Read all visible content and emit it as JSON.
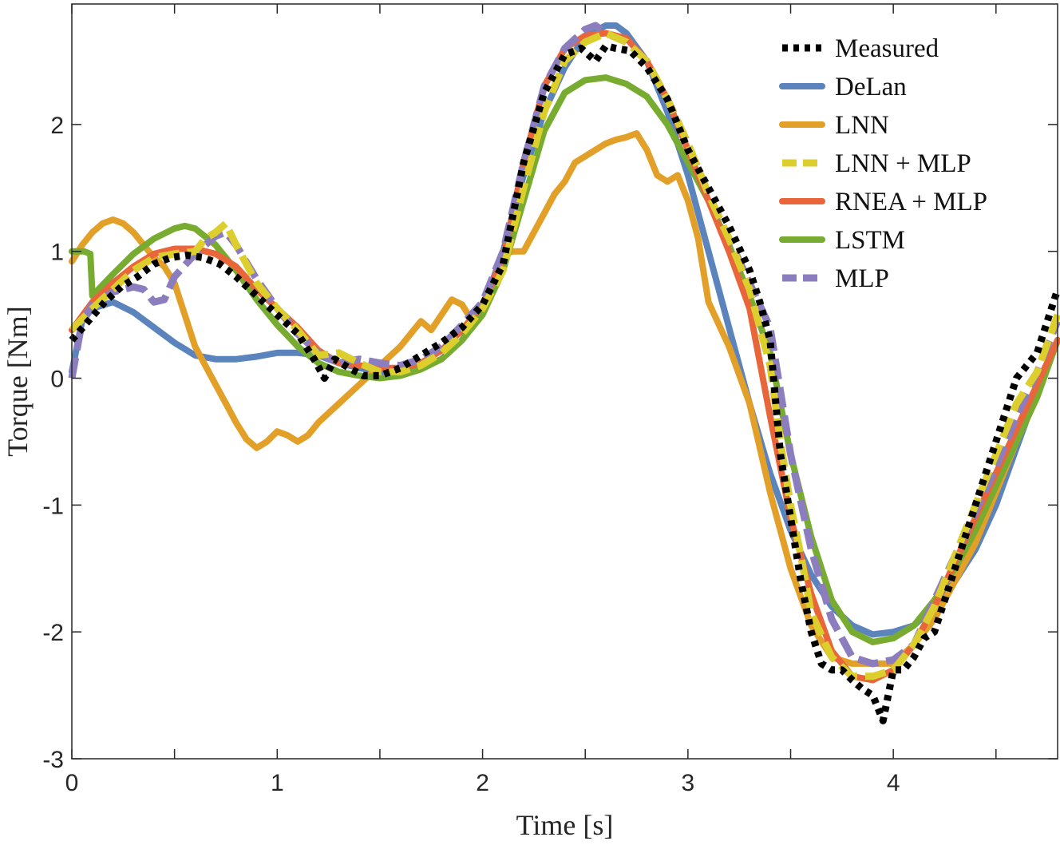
{
  "chart_data": {
    "type": "line",
    "xlabel": "Time [s]",
    "ylabel": "Torque [Nm]",
    "xlim": [
      0,
      4.8
    ],
    "ylim": [
      -3,
      2.95
    ],
    "x_ticks": [
      0,
      1,
      2,
      3,
      4
    ],
    "y_ticks": [
      -3,
      -2,
      -1,
      0,
      1,
      2
    ],
    "x_tick_labels": [
      "0",
      "1",
      "2",
      "3",
      "4"
    ],
    "y_tick_labels": [
      "-3",
      "-2",
      "-1",
      "0",
      "1",
      "2"
    ],
    "grid": false,
    "legend_position": "top-right",
    "series": [
      {
        "name": "Measured",
        "color": "#000000",
        "style": "dotted",
        "x": [
          0,
          0.08,
          0.16,
          0.24,
          0.32,
          0.4,
          0.48,
          0.56,
          0.64,
          0.72,
          0.8,
          0.9,
          1.0,
          1.1,
          1.18,
          1.23,
          1.28,
          1.35,
          1.42,
          1.5,
          1.6,
          1.7,
          1.8,
          1.9,
          2.0,
          2.1,
          2.2,
          2.3,
          2.4,
          2.48,
          2.55,
          2.6,
          2.65,
          2.72,
          2.8,
          2.9,
          3.0,
          3.1,
          3.2,
          3.3,
          3.35,
          3.4,
          3.45,
          3.5,
          3.55,
          3.6,
          3.65,
          3.7,
          3.75,
          3.8,
          3.85,
          3.9,
          3.95,
          4.0,
          4.05,
          4.1,
          4.15,
          4.2,
          4.3,
          4.4,
          4.5,
          4.6,
          4.7,
          4.8
        ],
        "y": [
          0.3,
          0.45,
          0.6,
          0.72,
          0.8,
          0.9,
          0.95,
          0.97,
          0.95,
          0.9,
          0.8,
          0.65,
          0.5,
          0.35,
          0.15,
          0.0,
          0.15,
          0.08,
          0.02,
          0.02,
          0.08,
          0.18,
          0.28,
          0.4,
          0.58,
          0.9,
          1.7,
          2.25,
          2.55,
          2.6,
          2.5,
          2.62,
          2.6,
          2.58,
          2.45,
          2.2,
          1.8,
          1.5,
          1.2,
          0.85,
          0.6,
          0.3,
          -0.6,
          -1.1,
          -1.6,
          -2.0,
          -2.25,
          -2.3,
          -2.3,
          -2.38,
          -2.45,
          -2.5,
          -2.7,
          -2.3,
          -2.3,
          -2.2,
          -2.05,
          -2.0,
          -1.5,
          -1.0,
          -0.5,
          0.0,
          0.2,
          0.7
        ]
      },
      {
        "name": "DeLan",
        "color": "#5B84BD",
        "style": "solid",
        "x": [
          0,
          0.05,
          0.1,
          0.2,
          0.3,
          0.4,
          0.5,
          0.6,
          0.7,
          0.8,
          0.9,
          1.0,
          1.1,
          1.2,
          1.3,
          1.4,
          1.5,
          1.6,
          1.7,
          1.8,
          1.9,
          2.0,
          2.1,
          2.2,
          2.3,
          2.4,
          2.5,
          2.6,
          2.65,
          2.7,
          2.8,
          2.9,
          3.0,
          3.1,
          3.2,
          3.3,
          3.4,
          3.5,
          3.6,
          3.7,
          3.8,
          3.9,
          4.0,
          4.1,
          4.2,
          4.3,
          4.4,
          4.5,
          4.6,
          4.7,
          4.8
        ],
        "y": [
          0.05,
          0.45,
          0.55,
          0.6,
          0.52,
          0.4,
          0.28,
          0.18,
          0.15,
          0.15,
          0.17,
          0.2,
          0.2,
          0.18,
          0.12,
          0.08,
          0.05,
          0.05,
          0.08,
          0.15,
          0.3,
          0.55,
          1.0,
          1.6,
          2.1,
          2.45,
          2.7,
          2.78,
          2.78,
          2.72,
          2.5,
          2.1,
          1.6,
          1.0,
          0.4,
          -0.2,
          -0.75,
          -1.2,
          -1.55,
          -1.8,
          -1.95,
          -2.02,
          -2.0,
          -1.95,
          -1.8,
          -1.6,
          -1.35,
          -1.0,
          -0.55,
          -0.1,
          0.3
        ]
      },
      {
        "name": "LNN",
        "color": "#E2A029",
        "style": "solid",
        "x": [
          0,
          0.05,
          0.1,
          0.15,
          0.2,
          0.25,
          0.3,
          0.35,
          0.4,
          0.45,
          0.5,
          0.55,
          0.6,
          0.65,
          0.7,
          0.75,
          0.8,
          0.85,
          0.9,
          0.95,
          1.0,
          1.05,
          1.1,
          1.15,
          1.2,
          1.3,
          1.4,
          1.5,
          1.6,
          1.65,
          1.7,
          1.75,
          1.8,
          1.85,
          1.9,
          1.95,
          2.0,
          2.05,
          2.1,
          2.15,
          2.2,
          2.25,
          2.3,
          2.35,
          2.4,
          2.45,
          2.5,
          2.55,
          2.6,
          2.65,
          2.7,
          2.75,
          2.8,
          2.85,
          2.9,
          2.95,
          3.0,
          3.05,
          3.1,
          3.2,
          3.3,
          3.4,
          3.5,
          3.6,
          3.7,
          3.8,
          3.9,
          4.0,
          4.1,
          4.2,
          4.3,
          4.4,
          4.5,
          4.6,
          4.7,
          4.8
        ],
        "y": [
          0.92,
          1.05,
          1.15,
          1.22,
          1.25,
          1.22,
          1.15,
          1.05,
          0.95,
          0.88,
          0.75,
          0.5,
          0.25,
          0.1,
          -0.05,
          -0.2,
          -0.35,
          -0.48,
          -0.55,
          -0.5,
          -0.42,
          -0.45,
          -0.5,
          -0.45,
          -0.35,
          -0.2,
          -0.05,
          0.1,
          0.25,
          0.35,
          0.45,
          0.38,
          0.5,
          0.62,
          0.58,
          0.45,
          0.55,
          0.75,
          0.98,
          1.0,
          1.0,
          1.15,
          1.3,
          1.45,
          1.55,
          1.7,
          1.75,
          1.8,
          1.85,
          1.88,
          1.9,
          1.93,
          1.8,
          1.6,
          1.55,
          1.6,
          1.4,
          1.1,
          0.6,
          0.25,
          -0.2,
          -0.9,
          -1.5,
          -1.95,
          -2.2,
          -2.25,
          -2.25,
          -2.25,
          -2.1,
          -1.9,
          -1.6,
          -1.3,
          -0.9,
          -0.5,
          -0.1,
          0.3
        ]
      },
      {
        "name": "LNN + MLP",
        "color": "#DCCE2C",
        "style": "dashed",
        "x": [
          0,
          0.1,
          0.2,
          0.3,
          0.4,
          0.5,
          0.6,
          0.65,
          0.7,
          0.75,
          0.8,
          0.9,
          1.0,
          1.1,
          1.2,
          1.3,
          1.4,
          1.5,
          1.6,
          1.7,
          1.8,
          1.9,
          2.0,
          2.1,
          2.2,
          2.3,
          2.4,
          2.5,
          2.6,
          2.7,
          2.8,
          2.9,
          3.0,
          3.1,
          3.2,
          3.3,
          3.35,
          3.4,
          3.45,
          3.5,
          3.55,
          3.6,
          3.7,
          3.8,
          3.9,
          4.0,
          4.1,
          4.2,
          4.3,
          4.4,
          4.5,
          4.6,
          4.7,
          4.8
        ],
        "y": [
          0.38,
          0.55,
          0.7,
          0.85,
          0.95,
          0.98,
          1.0,
          1.1,
          1.15,
          1.22,
          1.05,
          0.75,
          0.55,
          0.38,
          0.18,
          0.2,
          0.12,
          0.05,
          0.05,
          0.1,
          0.2,
          0.35,
          0.55,
          0.85,
          1.5,
          2.1,
          2.5,
          2.65,
          2.72,
          2.65,
          2.5,
          2.2,
          1.85,
          1.45,
          1.1,
          0.7,
          0.4,
          0.1,
          -0.5,
          -1.0,
          -1.4,
          -1.85,
          -2.2,
          -2.35,
          -2.35,
          -2.3,
          -2.1,
          -1.8,
          -1.4,
          -1.0,
          -0.6,
          -0.2,
          0.05,
          0.5
        ]
      },
      {
        "name": "RNEA + MLP",
        "color": "#E9663A",
        "style": "solid",
        "x": [
          0,
          0.1,
          0.2,
          0.3,
          0.4,
          0.5,
          0.6,
          0.7,
          0.8,
          0.9,
          1.0,
          1.1,
          1.2,
          1.3,
          1.4,
          1.5,
          1.6,
          1.7,
          1.8,
          1.9,
          2.0,
          2.1,
          2.2,
          2.3,
          2.4,
          2.5,
          2.6,
          2.7,
          2.8,
          2.9,
          3.0,
          3.1,
          3.2,
          3.3,
          3.4,
          3.5,
          3.6,
          3.7,
          3.8,
          3.9,
          4.0,
          4.1,
          4.2,
          4.3,
          4.4,
          4.5,
          4.6,
          4.7,
          4.8
        ],
        "y": [
          0.38,
          0.6,
          0.75,
          0.88,
          0.98,
          1.02,
          1.02,
          0.98,
          0.88,
          0.7,
          0.55,
          0.4,
          0.22,
          0.12,
          0.1,
          0.08,
          0.08,
          0.12,
          0.22,
          0.38,
          0.58,
          0.95,
          1.7,
          2.3,
          2.6,
          2.7,
          2.72,
          2.68,
          2.5,
          2.2,
          1.8,
          1.4,
          1.0,
          0.55,
          -0.3,
          -1.1,
          -1.7,
          -2.15,
          -2.35,
          -2.38,
          -2.3,
          -2.1,
          -1.8,
          -1.45,
          -1.1,
          -0.75,
          -0.4,
          -0.05,
          0.3
        ]
      },
      {
        "name": "LSTM",
        "color": "#77AC30",
        "style": "solid",
        "x": [
          0,
          0.03,
          0.06,
          0.09,
          0.1,
          0.2,
          0.3,
          0.4,
          0.5,
          0.55,
          0.6,
          0.7,
          0.8,
          0.9,
          1.0,
          1.1,
          1.2,
          1.3,
          1.4,
          1.5,
          1.6,
          1.7,
          1.8,
          1.9,
          2.0,
          2.1,
          2.2,
          2.3,
          2.4,
          2.5,
          2.6,
          2.7,
          2.8,
          2.9,
          3.0,
          3.1,
          3.2,
          3.3,
          3.4,
          3.5,
          3.6,
          3.7,
          3.8,
          3.9,
          4.0,
          4.1,
          4.2,
          4.3,
          4.4,
          4.5,
          4.6,
          4.7,
          4.8
        ],
        "y": [
          1.0,
          1.0,
          1.0,
          0.98,
          0.65,
          0.82,
          0.98,
          1.1,
          1.18,
          1.2,
          1.18,
          1.05,
          0.85,
          0.62,
          0.42,
          0.25,
          0.12,
          0.05,
          0.02,
          0.0,
          0.02,
          0.07,
          0.15,
          0.3,
          0.5,
          0.85,
          1.4,
          1.95,
          2.25,
          2.35,
          2.37,
          2.32,
          2.22,
          2.0,
          1.7,
          1.4,
          1.05,
          0.65,
          0.2,
          -0.6,
          -1.25,
          -1.75,
          -2.0,
          -2.08,
          -2.05,
          -1.95,
          -1.75,
          -1.5,
          -1.2,
          -0.85,
          -0.5,
          -0.15,
          0.3
        ]
      },
      {
        "name": "MLP",
        "color": "#8C7DBE",
        "style": "dashed",
        "x": [
          0,
          0.05,
          0.1,
          0.2,
          0.3,
          0.35,
          0.4,
          0.45,
          0.5,
          0.6,
          0.7,
          0.75,
          0.8,
          0.9,
          1.0,
          1.1,
          1.2,
          1.3,
          1.4,
          1.5,
          1.6,
          1.7,
          1.8,
          1.9,
          2.0,
          2.1,
          2.2,
          2.3,
          2.4,
          2.5,
          2.55,
          2.6,
          2.7,
          2.8,
          2.9,
          3.0,
          3.1,
          3.2,
          3.3,
          3.4,
          3.5,
          3.6,
          3.7,
          3.8,
          3.9,
          4.0,
          4.1,
          4.2,
          4.3,
          4.4,
          4.5,
          4.6,
          4.7,
          4.8
        ],
        "y": [
          0.0,
          0.45,
          0.58,
          0.68,
          0.72,
          0.7,
          0.6,
          0.62,
          0.8,
          0.98,
          1.12,
          1.15,
          1.05,
          0.78,
          0.55,
          0.35,
          0.2,
          0.12,
          0.15,
          0.12,
          0.1,
          0.15,
          0.25,
          0.42,
          0.6,
          1.0,
          1.7,
          2.3,
          2.6,
          2.75,
          2.78,
          2.72,
          2.65,
          2.5,
          2.2,
          1.85,
          1.45,
          1.1,
          0.75,
          0.4,
          -0.6,
          -1.35,
          -1.9,
          -2.2,
          -2.25,
          -2.22,
          -2.1,
          -1.75,
          -1.4,
          -1.05,
          -0.7,
          -0.3,
          0.05,
          0.45
        ]
      }
    ]
  }
}
